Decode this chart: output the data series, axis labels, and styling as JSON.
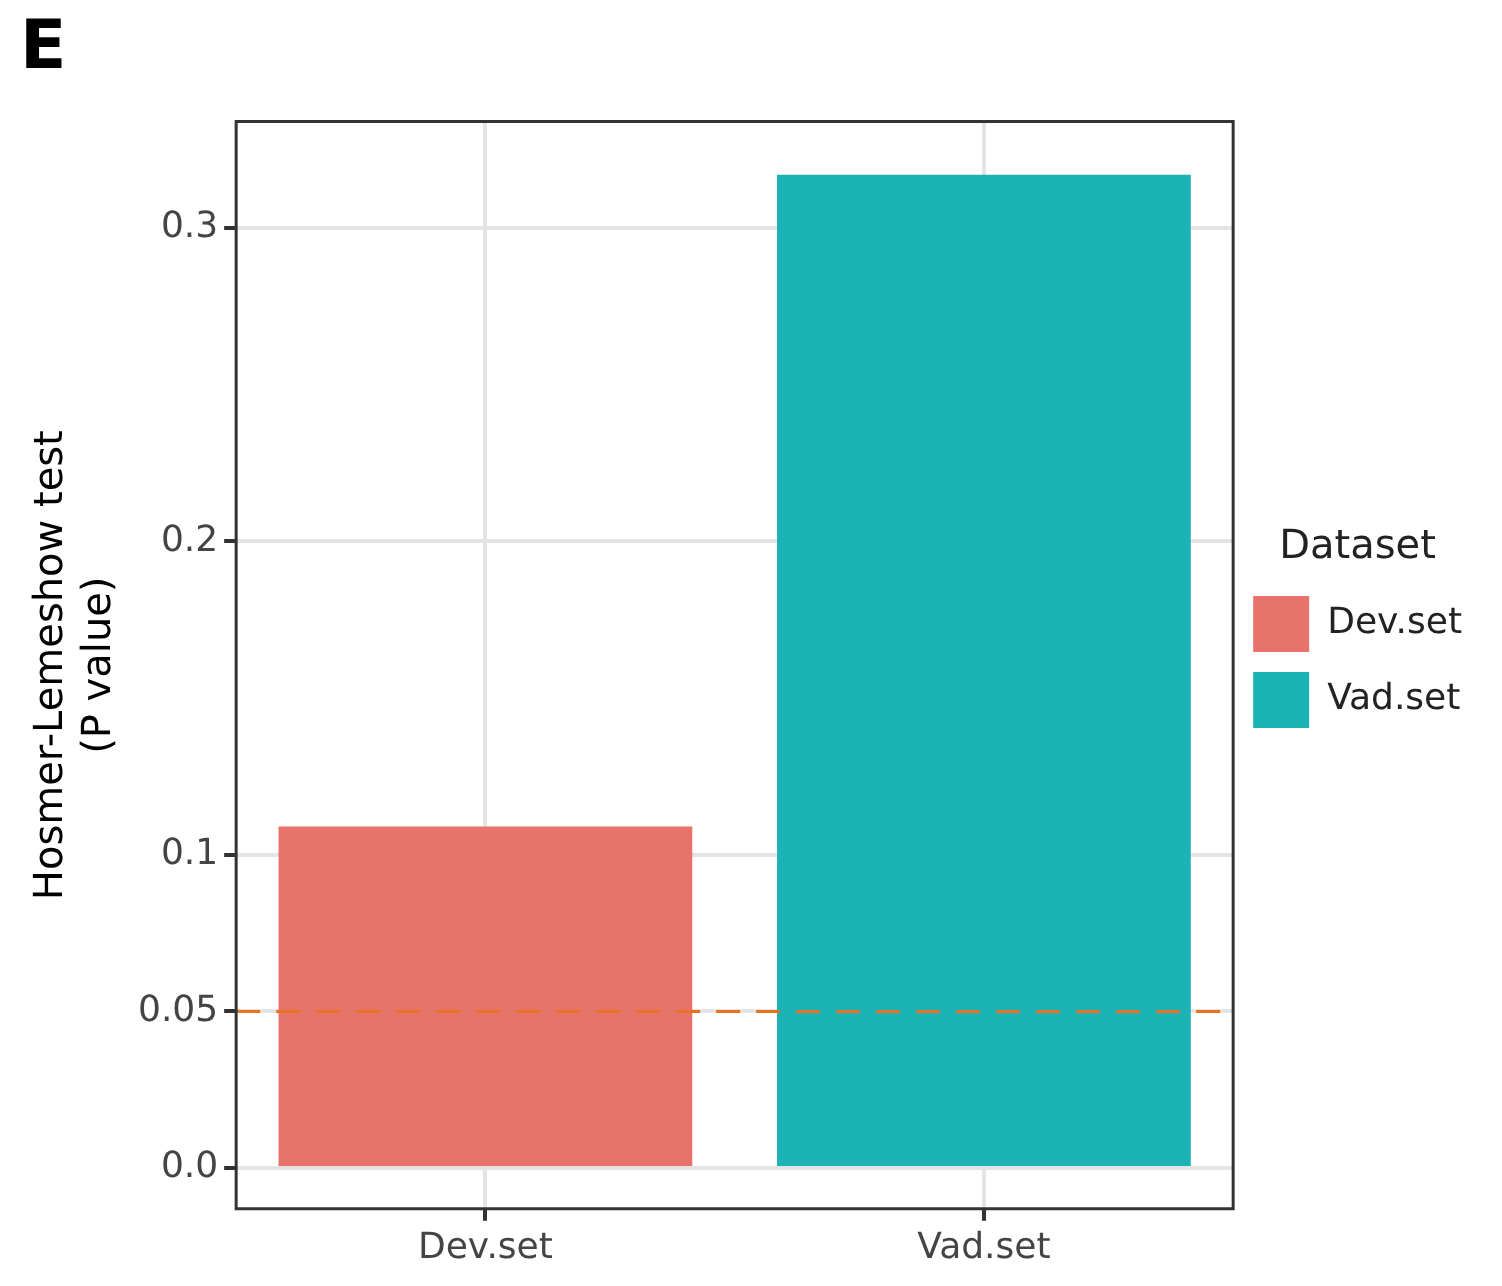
{
  "chart_data": {
    "type": "bar",
    "title": "E",
    "categories": [
      "Dev.set",
      "Vad.set"
    ],
    "series": [
      {
        "name": "Dev.set",
        "color": "#e8736b",
        "values": [
          0.109,
          null
        ]
      },
      {
        "name": "Vad.set",
        "color": "#1bb3b6",
        "values": [
          null,
          0.317
        ]
      }
    ],
    "ylabel": "Hosmer-Lemeshow test\n(P value)",
    "legend_title": "Dataset",
    "legend": "right",
    "ylim": [
      -0.013,
      0.334
    ],
    "yticks": [
      {
        "value": 0,
        "label": "0.0"
      },
      0.05,
      0.1,
      0.2,
      0.3
    ],
    "grid": true,
    "ref_lines": [
      {
        "axis": "y",
        "value": 0.05,
        "color": "#e8731f",
        "line_style": "dashed"
      }
    ]
  }
}
